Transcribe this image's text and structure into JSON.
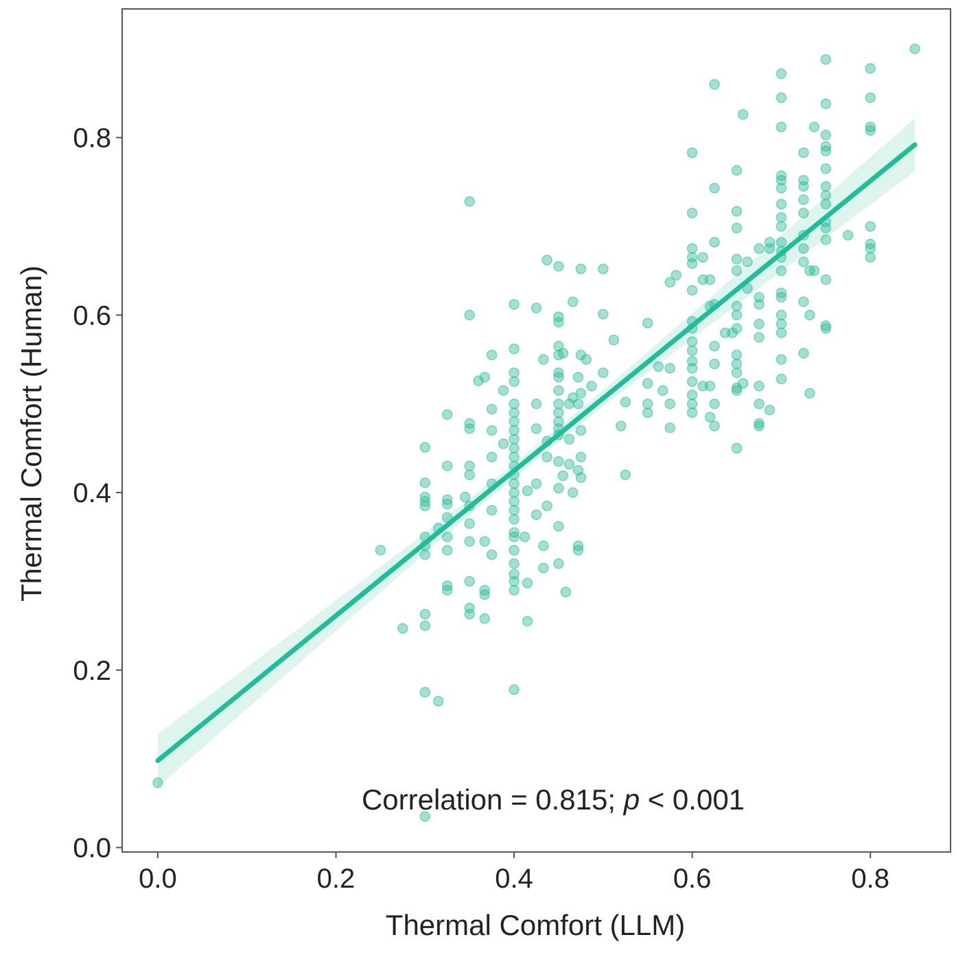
{
  "chart_data": {
    "type": "scatter",
    "title": "",
    "xlabel": "Thermal Comfort (LLM)",
    "ylabel": "Thermal Comfort (Human)",
    "xlim": [
      -0.04,
      0.89
    ],
    "ylim": [
      -0.005,
      0.945
    ],
    "xticks": [
      "0.0",
      "0.2",
      "0.4",
      "0.6",
      "0.8"
    ],
    "xtick_values": [
      0.0,
      0.2,
      0.4,
      0.6,
      0.8
    ],
    "yticks": [
      "0.0",
      "0.2",
      "0.4",
      "0.6",
      "0.8"
    ],
    "ytick_values": [
      0.0,
      0.2,
      0.4,
      0.6,
      0.8
    ],
    "grid": false,
    "annotation": {
      "prefix": "Correlation = 0.815; ",
      "p_symbol": "p",
      "suffix": " < 0.001",
      "correlation": 0.815
    },
    "regression": {
      "x_start": 0.0,
      "y_start": 0.098,
      "x_end": 0.85,
      "y_end": 0.792,
      "ci_halfwidth_ends": 0.03,
      "ci_halfwidth_center": 0.008
    },
    "colors": {
      "points": "#2ebd9b",
      "line": "#1dbf98",
      "band": "#d8f3ea",
      "axis": "#555555",
      "text": "#222222"
    },
    "series": [
      {
        "name": "observations",
        "points": [
          [
            0.0,
            0.073
          ],
          [
            0.25,
            0.335
          ],
          [
            0.275,
            0.247
          ],
          [
            0.3,
            0.451
          ],
          [
            0.3,
            0.411
          ],
          [
            0.3,
            0.395
          ],
          [
            0.3,
            0.39
          ],
          [
            0.3,
            0.385
          ],
          [
            0.3,
            0.35
          ],
          [
            0.3,
            0.34
          ],
          [
            0.3,
            0.33
          ],
          [
            0.3,
            0.263
          ],
          [
            0.3,
            0.25
          ],
          [
            0.3,
            0.175
          ],
          [
            0.3,
            0.035
          ],
          [
            0.315,
            0.165
          ],
          [
            0.315,
            0.36
          ],
          [
            0.325,
            0.488
          ],
          [
            0.325,
            0.43
          ],
          [
            0.325,
            0.392
          ],
          [
            0.325,
            0.387
          ],
          [
            0.325,
            0.372
          ],
          [
            0.325,
            0.35
          ],
          [
            0.325,
            0.335
          ],
          [
            0.325,
            0.295
          ],
          [
            0.325,
            0.29
          ],
          [
            0.345,
            0.395
          ],
          [
            0.35,
            0.728
          ],
          [
            0.35,
            0.6
          ],
          [
            0.35,
            0.478
          ],
          [
            0.35,
            0.472
          ],
          [
            0.35,
            0.43
          ],
          [
            0.35,
            0.42
          ],
          [
            0.35,
            0.385
          ],
          [
            0.35,
            0.365
          ],
          [
            0.35,
            0.345
          ],
          [
            0.35,
            0.3
          ],
          [
            0.35,
            0.27
          ],
          [
            0.35,
            0.263
          ],
          [
            0.36,
            0.526
          ],
          [
            0.367,
            0.53
          ],
          [
            0.367,
            0.345
          ],
          [
            0.367,
            0.29
          ],
          [
            0.367,
            0.285
          ],
          [
            0.367,
            0.258
          ],
          [
            0.375,
            0.555
          ],
          [
            0.375,
            0.494
          ],
          [
            0.375,
            0.47
          ],
          [
            0.375,
            0.44
          ],
          [
            0.375,
            0.41
          ],
          [
            0.375,
            0.38
          ],
          [
            0.375,
            0.33
          ],
          [
            0.388,
            0.515
          ],
          [
            0.388,
            0.455
          ],
          [
            0.4,
            0.612
          ],
          [
            0.4,
            0.562
          ],
          [
            0.4,
            0.535
          ],
          [
            0.4,
            0.525
          ],
          [
            0.4,
            0.5
          ],
          [
            0.4,
            0.49
          ],
          [
            0.4,
            0.48
          ],
          [
            0.4,
            0.47
          ],
          [
            0.4,
            0.46
          ],
          [
            0.4,
            0.45
          ],
          [
            0.4,
            0.44
          ],
          [
            0.4,
            0.43
          ],
          [
            0.4,
            0.42
          ],
          [
            0.4,
            0.41
          ],
          [
            0.4,
            0.4
          ],
          [
            0.4,
            0.39
          ],
          [
            0.4,
            0.38
          ],
          [
            0.4,
            0.37
          ],
          [
            0.4,
            0.355
          ],
          [
            0.4,
            0.35
          ],
          [
            0.4,
            0.335
          ],
          [
            0.4,
            0.32
          ],
          [
            0.4,
            0.308
          ],
          [
            0.4,
            0.3
          ],
          [
            0.4,
            0.29
          ],
          [
            0.4,
            0.178
          ],
          [
            0.412,
            0.35
          ],
          [
            0.415,
            0.402
          ],
          [
            0.415,
            0.255
          ],
          [
            0.415,
            0.298
          ],
          [
            0.425,
            0.608
          ],
          [
            0.425,
            0.5
          ],
          [
            0.425,
            0.472
          ],
          [
            0.425,
            0.41
          ],
          [
            0.425,
            0.375
          ],
          [
            0.433,
            0.34
          ],
          [
            0.433,
            0.315
          ],
          [
            0.433,
            0.55
          ],
          [
            0.437,
            0.662
          ],
          [
            0.437,
            0.458
          ],
          [
            0.437,
            0.44
          ],
          [
            0.437,
            0.385
          ],
          [
            0.45,
            0.655
          ],
          [
            0.45,
            0.598
          ],
          [
            0.45,
            0.592
          ],
          [
            0.45,
            0.565
          ],
          [
            0.45,
            0.555
          ],
          [
            0.45,
            0.535
          ],
          [
            0.45,
            0.53
          ],
          [
            0.45,
            0.515
          ],
          [
            0.45,
            0.5
          ],
          [
            0.45,
            0.49
          ],
          [
            0.45,
            0.48
          ],
          [
            0.45,
            0.472
          ],
          [
            0.45,
            0.465
          ],
          [
            0.45,
            0.435
          ],
          [
            0.45,
            0.405
          ],
          [
            0.45,
            0.362
          ],
          [
            0.45,
            0.32
          ],
          [
            0.455,
            0.557
          ],
          [
            0.455,
            0.419
          ],
          [
            0.458,
            0.288
          ],
          [
            0.462,
            0.5
          ],
          [
            0.462,
            0.432
          ],
          [
            0.462,
            0.46
          ],
          [
            0.466,
            0.615
          ],
          [
            0.466,
            0.507
          ],
          [
            0.466,
            0.4
          ],
          [
            0.472,
            0.53
          ],
          [
            0.472,
            0.5
          ],
          [
            0.472,
            0.425
          ],
          [
            0.472,
            0.34
          ],
          [
            0.472,
            0.335
          ],
          [
            0.475,
            0.652
          ],
          [
            0.475,
            0.555
          ],
          [
            0.475,
            0.512
          ],
          [
            0.475,
            0.47
          ],
          [
            0.475,
            0.44
          ],
          [
            0.475,
            0.417
          ],
          [
            0.481,
            0.55
          ],
          [
            0.487,
            0.52
          ],
          [
            0.5,
            0.652
          ],
          [
            0.5,
            0.601
          ],
          [
            0.5,
            0.535
          ],
          [
            0.512,
            0.572
          ],
          [
            0.52,
            0.475
          ],
          [
            0.525,
            0.502
          ],
          [
            0.525,
            0.42
          ],
          [
            0.55,
            0.591
          ],
          [
            0.55,
            0.523
          ],
          [
            0.55,
            0.5
          ],
          [
            0.55,
            0.49
          ],
          [
            0.562,
            0.542
          ],
          [
            0.567,
            0.515
          ],
          [
            0.575,
            0.637
          ],
          [
            0.575,
            0.5
          ],
          [
            0.575,
            0.473
          ],
          [
            0.575,
            0.54
          ],
          [
            0.582,
            0.645
          ],
          [
            0.6,
            0.783
          ],
          [
            0.6,
            0.715
          ],
          [
            0.6,
            0.675
          ],
          [
            0.6,
            0.665
          ],
          [
            0.6,
            0.658
          ],
          [
            0.6,
            0.628
          ],
          [
            0.6,
            0.593
          ],
          [
            0.6,
            0.585
          ],
          [
            0.6,
            0.57
          ],
          [
            0.6,
            0.56
          ],
          [
            0.6,
            0.548
          ],
          [
            0.6,
            0.54
          ],
          [
            0.6,
            0.525
          ],
          [
            0.6,
            0.51
          ],
          [
            0.6,
            0.5
          ],
          [
            0.6,
            0.49
          ],
          [
            0.612,
            0.665
          ],
          [
            0.612,
            0.64
          ],
          [
            0.612,
            0.52
          ],
          [
            0.62,
            0.64
          ],
          [
            0.62,
            0.61
          ],
          [
            0.62,
            0.52
          ],
          [
            0.62,
            0.485
          ],
          [
            0.625,
            0.86
          ],
          [
            0.625,
            0.743
          ],
          [
            0.625,
            0.682
          ],
          [
            0.625,
            0.612
          ],
          [
            0.625,
            0.545
          ],
          [
            0.625,
            0.565
          ],
          [
            0.625,
            0.5
          ],
          [
            0.625,
            0.475
          ],
          [
            0.637,
            0.58
          ],
          [
            0.645,
            0.58
          ],
          [
            0.65,
            0.763
          ],
          [
            0.65,
            0.717
          ],
          [
            0.65,
            0.698
          ],
          [
            0.65,
            0.663
          ],
          [
            0.65,
            0.65
          ],
          [
            0.65,
            0.61
          ],
          [
            0.65,
            0.6
          ],
          [
            0.65,
            0.585
          ],
          [
            0.65,
            0.555
          ],
          [
            0.65,
            0.545
          ],
          [
            0.65,
            0.535
          ],
          [
            0.65,
            0.518
          ],
          [
            0.65,
            0.515
          ],
          [
            0.65,
            0.45
          ],
          [
            0.657,
            0.826
          ],
          [
            0.657,
            0.523
          ],
          [
            0.662,
            0.66
          ],
          [
            0.662,
            0.63
          ],
          [
            0.675,
            0.675
          ],
          [
            0.675,
            0.62
          ],
          [
            0.675,
            0.612
          ],
          [
            0.675,
            0.59
          ],
          [
            0.675,
            0.575
          ],
          [
            0.675,
            0.52
          ],
          [
            0.675,
            0.5
          ],
          [
            0.675,
            0.478
          ],
          [
            0.675,
            0.475
          ],
          [
            0.687,
            0.675
          ],
          [
            0.687,
            0.493
          ],
          [
            0.687,
            0.682
          ],
          [
            0.7,
            0.872
          ],
          [
            0.7,
            0.845
          ],
          [
            0.7,
            0.812
          ],
          [
            0.7,
            0.757
          ],
          [
            0.7,
            0.752
          ],
          [
            0.7,
            0.743
          ],
          [
            0.7,
            0.725
          ],
          [
            0.7,
            0.71
          ],
          [
            0.7,
            0.7
          ],
          [
            0.7,
            0.682
          ],
          [
            0.7,
            0.672
          ],
          [
            0.7,
            0.665
          ],
          [
            0.7,
            0.65
          ],
          [
            0.7,
            0.625
          ],
          [
            0.7,
            0.62
          ],
          [
            0.7,
            0.6
          ],
          [
            0.7,
            0.59
          ],
          [
            0.7,
            0.58
          ],
          [
            0.7,
            0.55
          ],
          [
            0.7,
            0.528
          ],
          [
            0.725,
            0.783
          ],
          [
            0.725,
            0.752
          ],
          [
            0.725,
            0.745
          ],
          [
            0.725,
            0.73
          ],
          [
            0.725,
            0.715
          ],
          [
            0.725,
            0.69
          ],
          [
            0.725,
            0.66
          ],
          [
            0.725,
            0.615
          ],
          [
            0.725,
            0.557
          ],
          [
            0.725,
            0.675
          ],
          [
            0.732,
            0.65
          ],
          [
            0.732,
            0.6
          ],
          [
            0.732,
            0.512
          ],
          [
            0.737,
            0.65
          ],
          [
            0.737,
            0.812
          ],
          [
            0.75,
            0.888
          ],
          [
            0.75,
            0.838
          ],
          [
            0.75,
            0.803
          ],
          [
            0.75,
            0.79
          ],
          [
            0.75,
            0.785
          ],
          [
            0.75,
            0.765
          ],
          [
            0.75,
            0.745
          ],
          [
            0.75,
            0.735
          ],
          [
            0.75,
            0.725
          ],
          [
            0.75,
            0.705
          ],
          [
            0.75,
            0.698
          ],
          [
            0.75,
            0.685
          ],
          [
            0.75,
            0.64
          ],
          [
            0.75,
            0.588
          ],
          [
            0.75,
            0.585
          ],
          [
            0.775,
            0.69
          ],
          [
            0.8,
            0.878
          ],
          [
            0.8,
            0.845
          ],
          [
            0.8,
            0.812
          ],
          [
            0.8,
            0.808
          ],
          [
            0.8,
            0.7
          ],
          [
            0.8,
            0.68
          ],
          [
            0.8,
            0.675
          ],
          [
            0.8,
            0.665
          ],
          [
            0.85,
            0.9
          ]
        ]
      }
    ]
  }
}
